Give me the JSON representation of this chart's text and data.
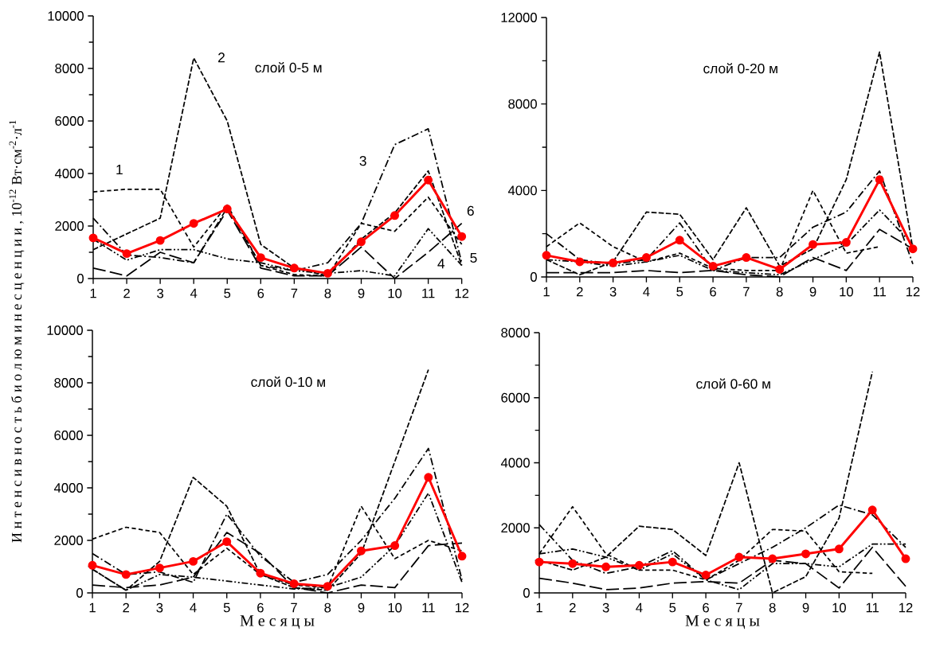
{
  "chart_data": [
    {
      "type": "line",
      "title": "слой 0-5 м",
      "x": [
        1,
        2,
        3,
        4,
        5,
        6,
        7,
        8,
        9,
        10,
        11,
        12
      ],
      "xlim": [
        1,
        12
      ],
      "xticks": [
        1,
        2,
        3,
        4,
        5,
        6,
        7,
        8,
        9,
        10,
        11,
        12
      ],
      "ylim": [
        0,
        10000
      ],
      "yticks": [
        0,
        {
          "value": 1000,
          "label": null
        },
        2000,
        {
          "value": 3000,
          "label": null
        },
        4000,
        {
          "value": 5000,
          "label": null
        },
        6000,
        {
          "value": 7000,
          "label": null
        },
        8000,
        {
          "value": 9000,
          "label": null
        },
        10000
      ],
      "ylabel": "И н т е н с и в н о с т ь   б и о л ю м и н е с ц е н ц и и ,  10$^{-12}$ Вт·см$^{-2}$·л$^{-1}$",
      "series": [
        {
          "color": "#000000",
          "line_style": "densely dashed",
          "marker": "none",
          "values": [
            3300,
            3400,
            3400,
            1200,
            2800,
            500,
            150,
            100,
            2100,
            1800,
            3100,
            1300
          ]
        },
        {
          "color": "#000000",
          "line_style": "dashed",
          "marker": "none",
          "values": [
            1100,
            1700,
            2300,
            8400,
            6000,
            1300,
            400,
            100,
            1500,
            2500,
            4100,
            500
          ]
        },
        {
          "color": "#000000",
          "line_style": "dashdotted",
          "marker": "none",
          "values": [
            2300,
            900,
            800,
            600,
            2700,
            500,
            300,
            600,
            2100,
            5100,
            5700,
            600
          ]
        },
        {
          "color": "#000000",
          "line_style": "loosely dashed",
          "marker": "none",
          "values": [
            400,
            100,
            1000,
            600,
            2600,
            400,
            100,
            100,
            1200,
            0,
            1000,
            2100
          ]
        },
        {
          "color": "#000000",
          "line_style": "dashdotdotted",
          "marker": "none",
          "values": [
            1500,
            700,
            1100,
            1100,
            750,
            600,
            300,
            200,
            300,
            100,
            1900,
            500
          ]
        },
        {
          "color": "#ff0000",
          "line_style": "solid",
          "marker": "circle",
          "values": [
            1550,
            950,
            1450,
            2100,
            2650,
            800,
            400,
            200,
            1400,
            2400,
            3750,
            1600
          ]
        }
      ],
      "annotations": [
        "1",
        "2",
        "3",
        "4",
        "5",
        "6"
      ]
    },
    {
      "type": "line",
      "title": "слой 0-20 м",
      "x": [
        1,
        2,
        3,
        4,
        5,
        6,
        7,
        8,
        9,
        10,
        11,
        12
      ],
      "xlim": [
        1,
        12
      ],
      "xticks": [
        1,
        2,
        3,
        4,
        5,
        6,
        7,
        8,
        9,
        10,
        11,
        12
      ],
      "ylim": [
        0,
        12000
      ],
      "yticks": [
        0,
        {
          "value": 2000,
          "label": null
        },
        4000,
        {
          "value": 6000,
          "label": null
        },
        8000,
        {
          "value": 10000,
          "label": null
        },
        12000
      ],
      "series": [
        {
          "color": "#000000",
          "line_style": "densely dashed",
          "marker": "none",
          "values": [
            1400,
            2500,
            1400,
            700,
            1100,
            400,
            300,
            300,
            4000,
            1100,
            1400,
            null
          ]
        },
        {
          "color": "#000000",
          "line_style": "dashed",
          "marker": "none",
          "values": [
            800,
            100,
            700,
            3000,
            2900,
            800,
            3200,
            500,
            1300,
            4500,
            10400,
            1300
          ]
        },
        {
          "color": "#000000",
          "line_style": "dashdotted",
          "marker": "none",
          "values": [
            2000,
            800,
            600,
            800,
            2500,
            300,
            900,
            900,
            2300,
            3000,
            4900,
            600
          ]
        },
        {
          "color": "#000000",
          "line_style": "loosely dashed",
          "marker": "none",
          "values": [
            200,
            200,
            200,
            300,
            200,
            300,
            100,
            0,
            900,
            300,
            2200,
            1300
          ]
        },
        {
          "color": "#000000",
          "line_style": "dashdotdotted",
          "marker": "none",
          "values": [
            800,
            700,
            500,
            700,
            1000,
            300,
            200,
            100,
            800,
            1500,
            3100,
            1500
          ]
        },
        {
          "color": "#ff0000",
          "line_style": "solid",
          "marker": "circle",
          "values": [
            1000,
            700,
            650,
            900,
            1700,
            500,
            900,
            350,
            1500,
            1600,
            4500,
            1300
          ]
        }
      ]
    },
    {
      "type": "line",
      "title": "слой 0-10 м",
      "x": [
        1,
        2,
        3,
        4,
        5,
        6,
        7,
        8,
        9,
        10,
        11,
        12
      ],
      "xlim": [
        1,
        12
      ],
      "xticks": [
        1,
        2,
        3,
        4,
        5,
        6,
        7,
        8,
        9,
        10,
        11,
        12
      ],
      "ylim": [
        0,
        10000
      ],
      "yticks": [
        0,
        {
          "value": 1000,
          "label": null
        },
        2000,
        {
          "value": 3000,
          "label": null
        },
        4000,
        {
          "value": 5000,
          "label": null
        },
        6000,
        {
          "value": 7000,
          "label": null
        },
        8000,
        {
          "value": 9000,
          "label": null
        },
        10000
      ],
      "xlabel": "М е с я ц ы",
      "series": [
        {
          "color": "#000000",
          "line_style": "densely dashed",
          "marker": "none",
          "values": [
            2050,
            2500,
            2300,
            700,
            1700,
            700,
            300,
            200,
            3300,
            1300,
            2000,
            1600
          ]
        },
        {
          "color": "#000000",
          "line_style": "dashed",
          "marker": "none",
          "values": [
            900,
            100,
            1200,
            4400,
            3300,
            700,
            200,
            100,
            1500,
            5000,
            8500,
            null
          ]
        },
        {
          "color": "#000000",
          "line_style": "dashdotted",
          "marker": "none",
          "values": [
            1500,
            700,
            800,
            400,
            3000,
            1400,
            400,
            700,
            2000,
            3600,
            5500,
            500
          ]
        },
        {
          "color": "#000000",
          "line_style": "loosely dashed",
          "marker": "none",
          "values": [
            300,
            200,
            300,
            600,
            2300,
            1500,
            200,
            0,
            300,
            200,
            1800,
            1900
          ]
        },
        {
          "color": "#000000",
          "line_style": "dashdotdotted",
          "marker": "none",
          "values": [
            900,
            100,
            700,
            600,
            450,
            300,
            150,
            200,
            600,
            1800,
            3800,
            400
          ]
        },
        {
          "color": "#ff0000",
          "line_style": "solid",
          "marker": "circle",
          "values": [
            1050,
            700,
            950,
            1200,
            1950,
            750,
            350,
            250,
            1600,
            1800,
            4400,
            1400
          ]
        }
      ]
    },
    {
      "type": "line",
      "title": "слой 0-60 м",
      "x": [
        1,
        2,
        3,
        4,
        5,
        6,
        7,
        8,
        9,
        10,
        11,
        12
      ],
      "xlim": [
        1,
        12
      ],
      "xticks": [
        1,
        2,
        3,
        4,
        5,
        6,
        7,
        8,
        9,
        10,
        11,
        12
      ],
      "ylim": [
        0,
        8000
      ],
      "yticks": [
        0,
        {
          "value": 1000,
          "label": null
        },
        2000,
        {
          "value": 3000,
          "label": null
        },
        4000,
        {
          "value": 5000,
          "label": null
        },
        6000,
        {
          "value": 7000,
          "label": null
        },
        8000
      ],
      "xlabel": "М е с я ц ы",
      "series": [
        {
          "color": "#000000",
          "line_style": "densely dashed",
          "marker": "none",
          "values": [
            1200,
            2650,
            1200,
            700,
            700,
            400,
            1000,
            1950,
            1900,
            650,
            600,
            null
          ]
        },
        {
          "color": "#000000",
          "line_style": "dashed",
          "marker": "none",
          "values": [
            1000,
            700,
            1100,
            2050,
            1950,
            1150,
            4000,
            0,
            500,
            2300,
            6800,
            null
          ]
        },
        {
          "color": "#000000",
          "line_style": "dashdotted",
          "marker": "none",
          "values": [
            2100,
            1000,
            600,
            800,
            1300,
            400,
            900,
            1400,
            2000,
            2700,
            2400,
            1400
          ]
        },
        {
          "color": "#000000",
          "line_style": "loosely dashed",
          "marker": "none",
          "values": [
            450,
            300,
            100,
            150,
            300,
            350,
            300,
            1000,
            900,
            150,
            1400,
            200
          ]
        },
        {
          "color": "#000000",
          "line_style": "dashdotdotted",
          "marker": "none",
          "values": [
            1200,
            1350,
            1100,
            700,
            1200,
            400,
            100,
            900,
            900,
            800,
            1500,
            1500
          ]
        },
        {
          "color": "#ff0000",
          "line_style": "solid",
          "marker": "circle",
          "values": [
            950,
            900,
            800,
            850,
            950,
            550,
            1100,
            1050,
            1200,
            1350,
            2550,
            1050
          ]
        }
      ]
    }
  ]
}
